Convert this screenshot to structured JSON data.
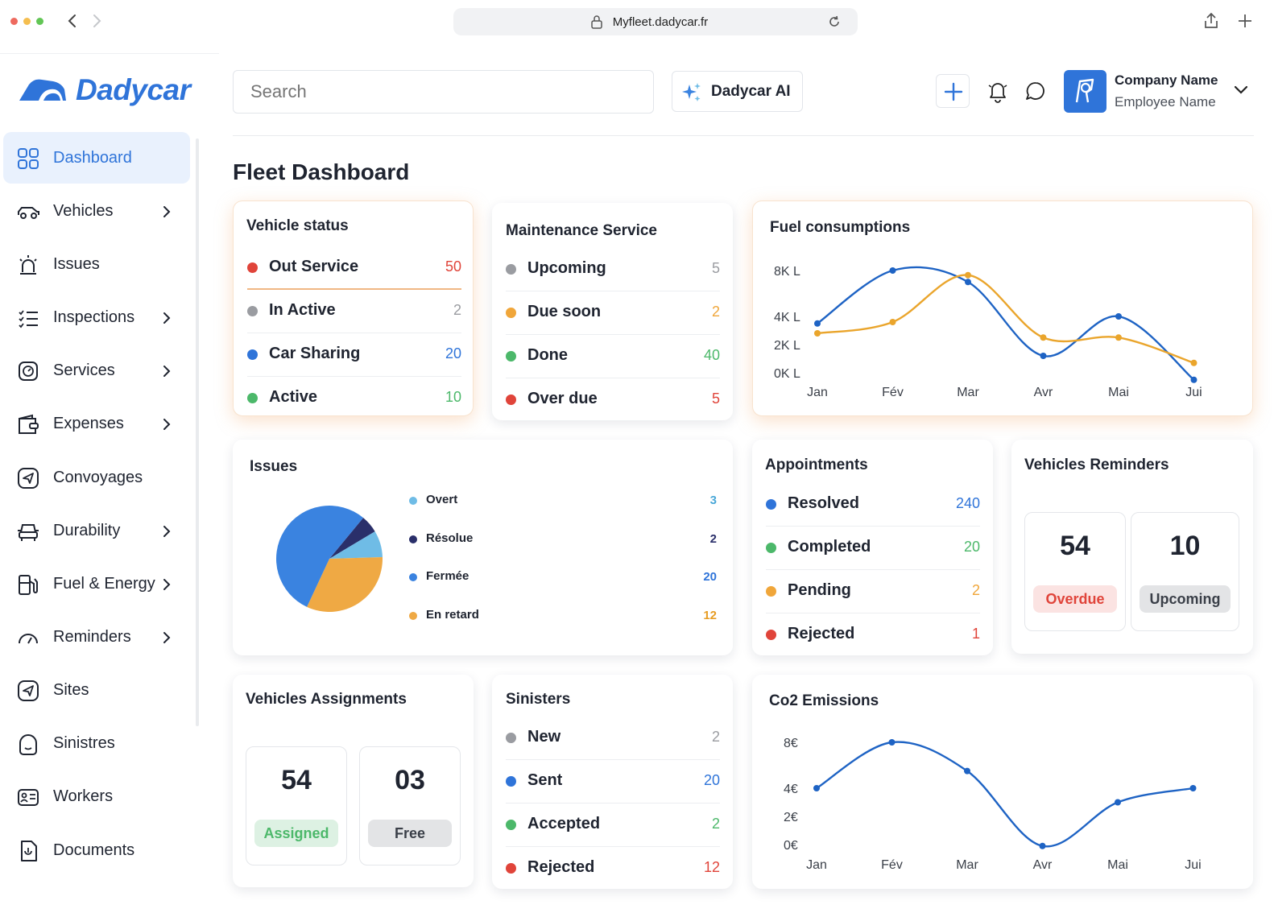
{
  "browser": {
    "url": "Myfleet.dadycar.fr"
  },
  "brand": {
    "name": "Dadycar",
    "accent": "#2f74d9"
  },
  "sidebar": {
    "items": [
      {
        "label": "Dashboard",
        "icon": "dashboard-grid-icon",
        "active": true,
        "chevron": false
      },
      {
        "label": "Vehicles",
        "icon": "car-icon",
        "chevron": true
      },
      {
        "label": "Issues",
        "icon": "alarm-light-icon",
        "chevron": false
      },
      {
        "label": "Inspections",
        "icon": "checklist-icon",
        "chevron": true
      },
      {
        "label": "Services",
        "icon": "gauge-icon",
        "chevron": true
      },
      {
        "label": "Expenses",
        "icon": "wallet-icon",
        "chevron": true
      },
      {
        "label": "Convoyages",
        "icon": "navigation-icon",
        "chevron": false
      },
      {
        "label": "Durability",
        "icon": "car-front-icon",
        "chevron": true
      },
      {
        "label": "Fuel & Energy",
        "icon": "fuel-pump-icon",
        "chevron": true
      },
      {
        "label": "Reminders",
        "icon": "speedometer-icon",
        "chevron": true
      },
      {
        "label": "Sites",
        "icon": "navigation-icon",
        "chevron": false
      },
      {
        "label": "Sinistres",
        "icon": "shield-icon",
        "chevron": false
      },
      {
        "label": "Workers",
        "icon": "id-card-icon",
        "chevron": false
      },
      {
        "label": "Documents",
        "icon": "document-icon",
        "chevron": false
      }
    ]
  },
  "header": {
    "search_placeholder": "Search",
    "ai_label": "Dadycar AI",
    "company": "Company Name",
    "employee": "Employee Name"
  },
  "page_title": "Fleet Dashboard",
  "vehicle_status": {
    "title": "Vehicle status",
    "rows": [
      {
        "label": "Out Service",
        "value": "50",
        "color": "#e0443a"
      },
      {
        "label": "In Active",
        "value": "2",
        "color": "#9a9ca1"
      },
      {
        "label": "Car Sharing",
        "value": "20",
        "color": "#2f74d9"
      },
      {
        "label": "Active",
        "value": "10",
        "color": "#4cb86a"
      }
    ]
  },
  "maintenance": {
    "title": "Maintenance Service",
    "rows": [
      {
        "label": "Upcoming",
        "value": "5",
        "color": "#9a9ca1"
      },
      {
        "label": "Due soon",
        "value": "2",
        "color": "#f0a63a"
      },
      {
        "label": "Done",
        "value": "40",
        "color": "#4cb86a"
      },
      {
        "label": "Over due",
        "value": "5",
        "color": "#e0443a"
      }
    ]
  },
  "fuel_chart": {
    "title": "Fuel consumptions",
    "chart_data": {
      "type": "line",
      "x": [
        "Jan",
        "Fév",
        "Mar",
        "Avr",
        "Mai",
        "Jui"
      ],
      "y_ticks": [
        "8K L",
        "4K L",
        "2K L",
        "0K L"
      ],
      "series": [
        {
          "color": "#1e63c4",
          "values": [
            3.5,
            8,
            7,
            1.2,
            4,
            -0.5
          ]
        },
        {
          "color": "#eaa52c",
          "values": [
            2.8,
            3.6,
            7.6,
            2.5,
            2.5,
            0.7
          ]
        }
      ]
    }
  },
  "issues": {
    "title": "Issues",
    "chart_data": {
      "type": "pie",
      "slices": [
        {
          "label": "Overt",
          "value": 3,
          "color": "#6fbce6"
        },
        {
          "label": "Résolue",
          "value": 2,
          "color": "#2a2f6a"
        },
        {
          "label": "Fermée",
          "value": 20,
          "color": "#3a83e0"
        },
        {
          "label": "En retard",
          "value": 12,
          "color": "#efa944"
        }
      ]
    },
    "rows": [
      {
        "label": "Overt",
        "value": "3",
        "color": "#6fbce6",
        "text_color": "#4aa8d8"
      },
      {
        "label": "Résolue",
        "value": "2",
        "color": "#2a2f6a",
        "text_color": "#2a2f6a"
      },
      {
        "label": "Fermée",
        "value": "20",
        "color": "#3a83e0",
        "text_color": "#2f74d9"
      },
      {
        "label": "En retard",
        "value": "12",
        "color": "#efa944",
        "text_color": "#e79d25"
      }
    ]
  },
  "appointments": {
    "title": "Appointments",
    "rows": [
      {
        "label": "Resolved",
        "value": "240",
        "color": "#2f74d9"
      },
      {
        "label": "Completed",
        "value": "20",
        "color": "#4cb86a"
      },
      {
        "label": "Pending",
        "value": "2",
        "color": "#f0a63a"
      },
      {
        "label": "Rejected",
        "value": "1",
        "color": "#e0443a"
      }
    ]
  },
  "reminders": {
    "title": "Vehicles Reminders",
    "overdue": {
      "value": "54",
      "label": "Overdue"
    },
    "upcoming": {
      "value": "10",
      "label": "Upcoming"
    }
  },
  "assignments": {
    "title": "Vehicles Assignments",
    "assigned": {
      "value": "54",
      "label": "Assigned"
    },
    "free": {
      "value": "03",
      "label": "Free"
    }
  },
  "sinisters": {
    "title": "Sinisters",
    "rows": [
      {
        "label": "New",
        "value": "2",
        "color": "#9a9ca1"
      },
      {
        "label": "Sent",
        "value": "20",
        "color": "#2f74d9"
      },
      {
        "label": "Accepted",
        "value": "2",
        "color": "#4cb86a"
      },
      {
        "label": "Rejected",
        "value": "12",
        "color": "#e0443a"
      }
    ]
  },
  "co2_chart": {
    "title": "Co2 Emissions",
    "chart_data": {
      "type": "line",
      "x": [
        "Jan",
        "Fév",
        "Mar",
        "Avr",
        "Mai",
        "Jui"
      ],
      "y_ticks": [
        "8€",
        "4€",
        "2€",
        "0€"
      ],
      "series": [
        {
          "color": "#1e63c4",
          "values": [
            4,
            8,
            5.5,
            -0.1,
            3,
            4
          ]
        }
      ]
    }
  }
}
